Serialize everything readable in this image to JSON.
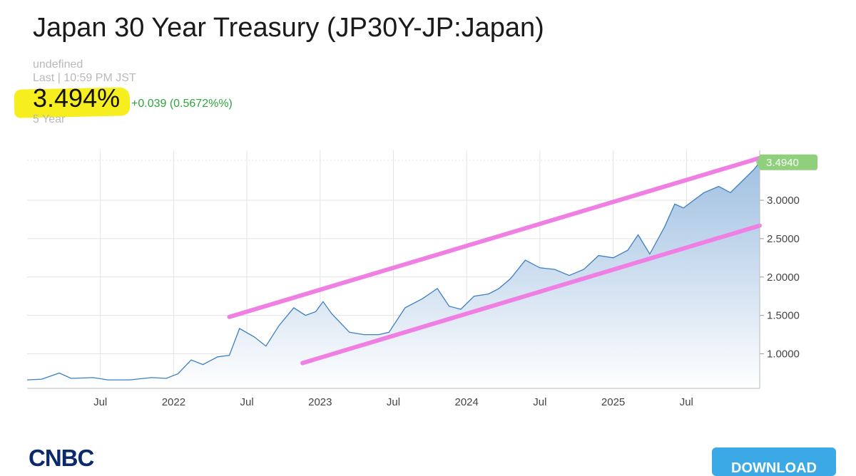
{
  "header": {
    "title": "Japan 30 Year Treasury (JP30Y-JP:Japan)",
    "undefined_label": "undefined",
    "last_label": "Last | 10:59 PM JST",
    "price": "3.494%",
    "change": "+0.039 (0.5672%%)",
    "range_label": "5 Year"
  },
  "chart_data": {
    "type": "area",
    "title": "",
    "xlabel": "",
    "ylabel": "",
    "x_ticks": [
      "Jul",
      "2022",
      "Jul",
      "2023",
      "Jul",
      "2024",
      "Jul",
      "2025",
      "Jul"
    ],
    "y_ticks": [
      "1.0000",
      "1.5000",
      "2.0000",
      "2.5000",
      "3.0000"
    ],
    "ylim": [
      0.55,
      3.65
    ],
    "last_value_label": "3.4940",
    "grid": true,
    "series": [
      {
        "points": [
          [
            2021.0,
            0.66
          ],
          [
            2021.1,
            0.67
          ],
          [
            2021.22,
            0.75
          ],
          [
            2021.3,
            0.68
          ],
          [
            2021.45,
            0.69
          ],
          [
            2021.55,
            0.66
          ],
          [
            2021.7,
            0.66
          ],
          [
            2021.85,
            0.69
          ],
          [
            2021.95,
            0.68
          ],
          [
            2022.03,
            0.74
          ],
          [
            2022.12,
            0.92
          ],
          [
            2022.2,
            0.86
          ],
          [
            2022.3,
            0.96
          ],
          [
            2022.38,
            0.98
          ],
          [
            2022.45,
            1.33
          ],
          [
            2022.55,
            1.22
          ],
          [
            2022.63,
            1.1
          ],
          [
            2022.72,
            1.37
          ],
          [
            2022.82,
            1.6
          ],
          [
            2022.9,
            1.5
          ],
          [
            2022.97,
            1.55
          ],
          [
            2023.02,
            1.68
          ],
          [
            2023.08,
            1.52
          ],
          [
            2023.2,
            1.28
          ],
          [
            2023.3,
            1.25
          ],
          [
            2023.4,
            1.25
          ],
          [
            2023.47,
            1.28
          ],
          [
            2023.58,
            1.6
          ],
          [
            2023.7,
            1.72
          ],
          [
            2023.8,
            1.85
          ],
          [
            2023.88,
            1.62
          ],
          [
            2023.96,
            1.58
          ],
          [
            2024.05,
            1.75
          ],
          [
            2024.15,
            1.78
          ],
          [
            2024.22,
            1.85
          ],
          [
            2024.3,
            1.98
          ],
          [
            2024.4,
            2.22
          ],
          [
            2024.5,
            2.12
          ],
          [
            2024.6,
            2.1
          ],
          [
            2024.7,
            2.02
          ],
          [
            2024.8,
            2.1
          ],
          [
            2024.9,
            2.28
          ],
          [
            2025.0,
            2.25
          ],
          [
            2025.1,
            2.35
          ],
          [
            2025.17,
            2.55
          ],
          [
            2025.25,
            2.3
          ],
          [
            2025.35,
            2.65
          ],
          [
            2025.42,
            2.95
          ],
          [
            2025.48,
            2.9
          ],
          [
            2025.55,
            3.0
          ],
          [
            2025.62,
            3.1
          ],
          [
            2025.72,
            3.18
          ],
          [
            2025.8,
            3.1
          ],
          [
            2025.88,
            3.25
          ],
          [
            2025.96,
            3.4
          ],
          [
            2026.0,
            3.494
          ]
        ]
      }
    ],
    "annotations": [
      {
        "type": "trend_line",
        "color": "#ef7fe3",
        "from": [
          2022.38,
          1.48
        ],
        "to": [
          2026.0,
          3.55
        ]
      },
      {
        "type": "trend_line",
        "color": "#ef7fe3",
        "from": [
          2022.88,
          0.88
        ],
        "to": [
          2026.0,
          2.67
        ]
      }
    ],
    "colors": {
      "line": "#3e7fbf",
      "area_top": "#9cbde0",
      "area_bottom": "#ffffff",
      "last_value_badge": "#8fd07c",
      "grid": "#e3e3e3"
    }
  },
  "footer": {
    "logo": "CNBC",
    "download_label": "DOWNLOAD"
  }
}
